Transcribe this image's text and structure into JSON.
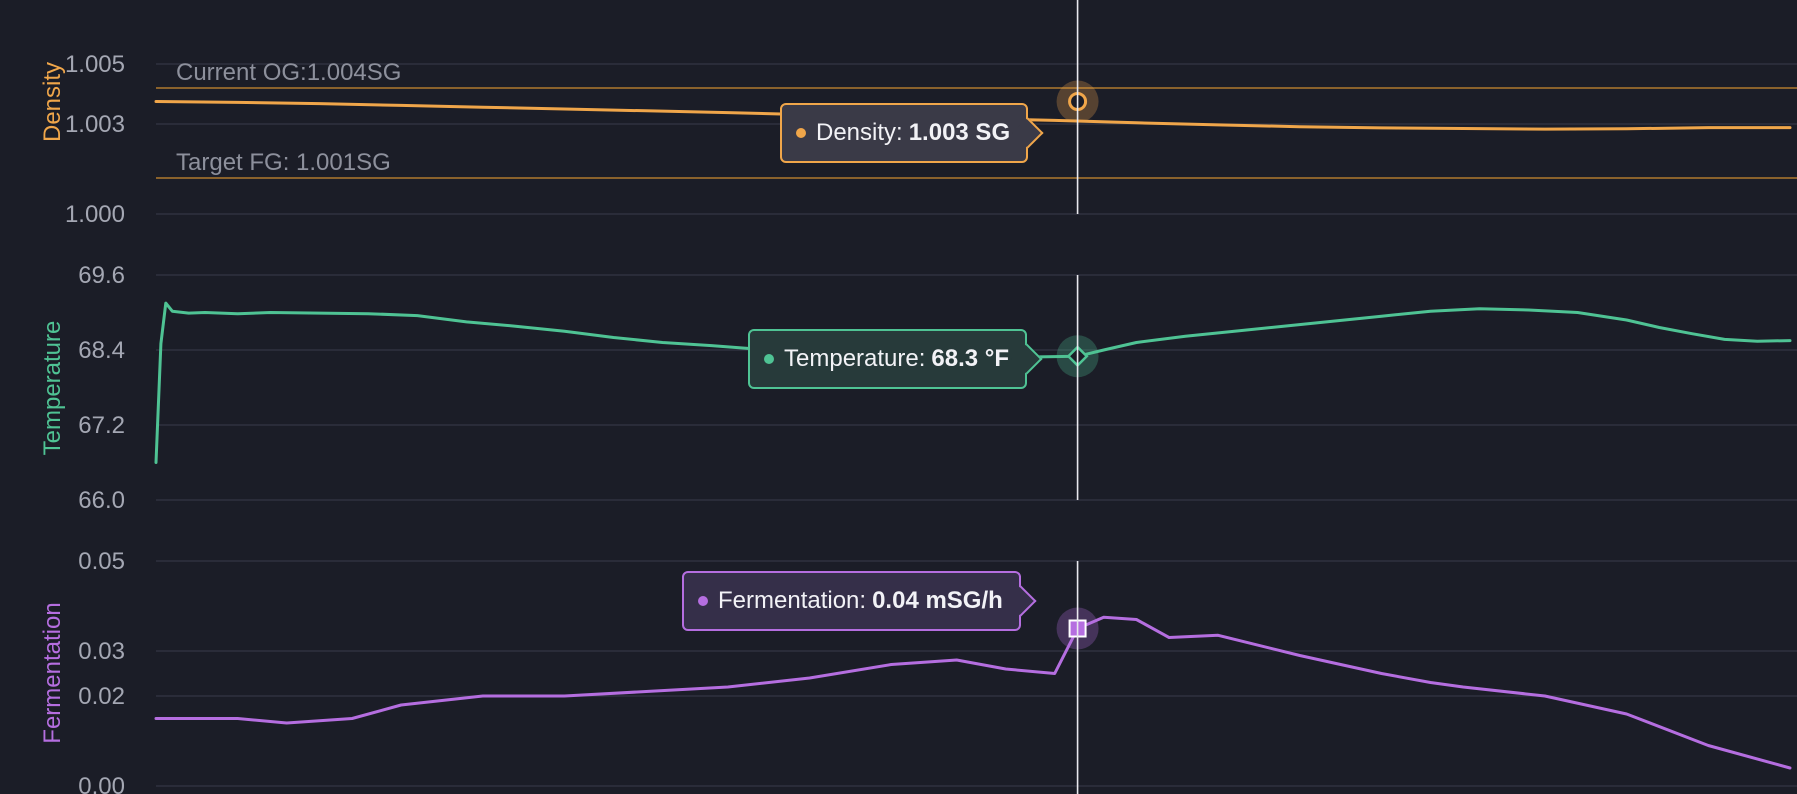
{
  "chart_data": [
    {
      "type": "line",
      "id": "density",
      "ylabel": "Density",
      "unit": "SG",
      "color": "#f0a64a",
      "ylim": [
        1.0,
        1.005
      ],
      "y_ticks": [
        "1.000",
        "1.003",
        "1.005"
      ],
      "reference_lines": [
        {
          "label": "Current OG:1.004SG",
          "value": 1.0042
        },
        {
          "label": "Target FG: 1.001SG",
          "value": 1.0012
        }
      ],
      "x": [
        0,
        5,
        10,
        15,
        20,
        25,
        30,
        35,
        40,
        45,
        50,
        55,
        60,
        65,
        70,
        75,
        80,
        85,
        90,
        95,
        100
      ],
      "values": [
        1.00375,
        1.00372,
        1.00368,
        1.00362,
        1.00356,
        1.0035,
        1.00344,
        1.00338,
        1.00331,
        1.00325,
        1.00318,
        1.00312,
        1.00304,
        1.00297,
        1.00291,
        1.00287,
        1.00285,
        1.00283,
        1.00284,
        1.00288,
        1.00288
      ],
      "tooltip": {
        "x": 56.4,
        "label": "Density:",
        "value": "1.003 SG"
      }
    },
    {
      "type": "line",
      "id": "temperature",
      "ylabel": "Temperature",
      "unit": "°F",
      "color": "#4fc394",
      "ylim": [
        66.0,
        69.6
      ],
      "y_ticks": [
        "66.0",
        "67.2",
        "68.4",
        "69.6"
      ],
      "x": [
        0,
        0.3,
        0.6,
        1,
        2,
        3,
        5,
        7,
        10,
        13,
        16,
        19,
        22,
        25,
        28,
        31,
        34,
        37,
        40,
        43,
        46,
        49,
        52,
        54,
        56.4,
        58,
        60,
        63,
        66,
        69,
        72,
        75,
        78,
        81,
        84,
        87,
        90,
        92,
        94,
        96,
        98,
        100
      ],
      "values": [
        66.6,
        68.5,
        69.15,
        69.02,
        68.99,
        69.0,
        68.98,
        69.0,
        68.99,
        68.98,
        68.95,
        68.85,
        68.78,
        68.7,
        68.6,
        68.52,
        68.47,
        68.41,
        68.34,
        68.3,
        68.28,
        68.27,
        68.28,
        68.29,
        68.3,
        68.4,
        68.52,
        68.62,
        68.7,
        68.78,
        68.86,
        68.94,
        69.02,
        69.06,
        69.04,
        69.0,
        68.88,
        68.76,
        68.66,
        68.57,
        68.54,
        68.55
      ],
      "tooltip": {
        "x": 56.4,
        "label": "Temperature:",
        "value": "68.3 °F"
      }
    },
    {
      "type": "line",
      "id": "fermentation",
      "ylabel": "Fermentation",
      "unit": "mSG/h",
      "color": "#b56ee0",
      "ylim": [
        0.0,
        0.05
      ],
      "y_ticks": [
        "0.00",
        "0.02",
        "0.03",
        "0.05"
      ],
      "x": [
        0,
        5,
        8,
        12,
        15,
        20,
        25,
        30,
        35,
        40,
        45,
        49,
        52,
        55,
        56.4,
        58,
        60,
        62,
        65,
        70,
        75,
        78,
        80,
        85,
        90,
        95,
        100
      ],
      "values": [
        0.015,
        0.015,
        0.014,
        0.015,
        0.018,
        0.02,
        0.02,
        0.021,
        0.022,
        0.024,
        0.027,
        0.028,
        0.026,
        0.025,
        0.035,
        0.0375,
        0.037,
        0.033,
        0.0335,
        0.029,
        0.025,
        0.023,
        0.022,
        0.02,
        0.016,
        0.009,
        0.004
      ],
      "tooltip": {
        "x": 56.4,
        "label": "Fermentation:",
        "value": "0.04 mSG/h"
      }
    }
  ],
  "crosshair_x": 56.4
}
